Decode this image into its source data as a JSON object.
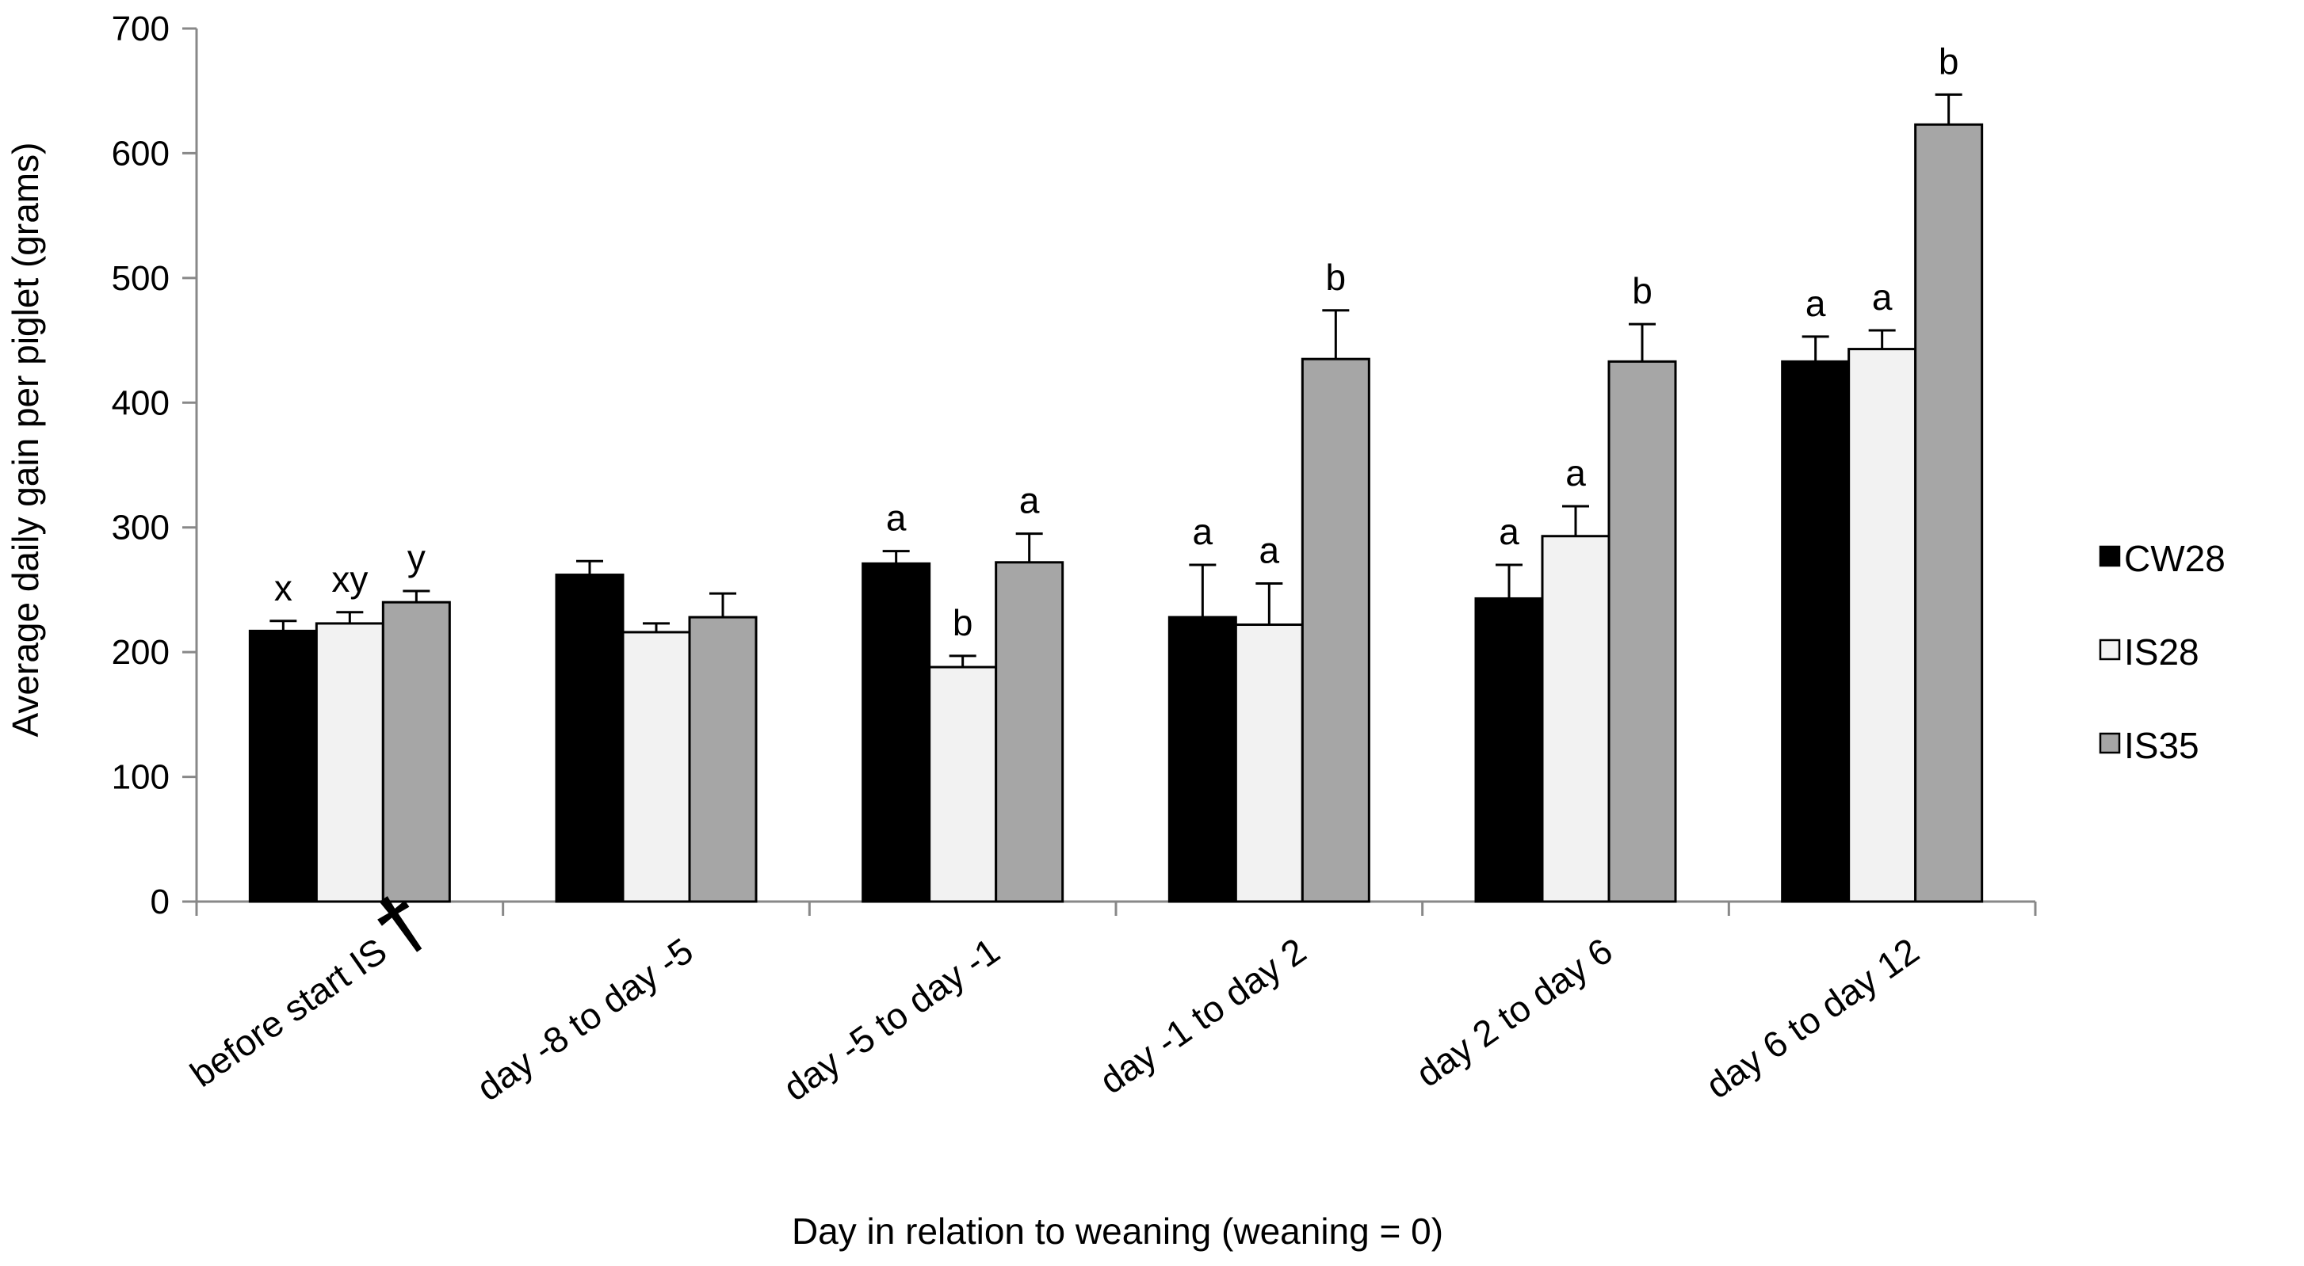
{
  "chart_data": {
    "type": "bar",
    "title": "",
    "xlabel": "Day in relation to weaning (weaning = 0)",
    "ylabel": "Average daily gain per piglet (grams)",
    "ylim": [
      0,
      700
    ],
    "yticks": [
      0,
      100,
      200,
      300,
      400,
      500,
      600,
      700
    ],
    "grid": false,
    "legend_position": "right",
    "categories": [
      "before start IS",
      "day -8 to day -5",
      "day -5 to day -1",
      "day -1 to day 2",
      "day 2 to day 6",
      "day 6 to day 12"
    ],
    "category_marks": [
      "†",
      "",
      "",
      "",
      "",
      ""
    ],
    "series": [
      {
        "name": "CW28",
        "color": "#000000",
        "values": [
          217,
          262,
          271,
          228,
          243,
          433
        ],
        "errors": [
          8,
          11,
          10,
          42,
          27,
          20
        ],
        "labels": [
          "x",
          "",
          "a",
          "a",
          "a",
          "a"
        ]
      },
      {
        "name": "IS28",
        "color": "#f2f2f2",
        "values": [
          223,
          216,
          188,
          222,
          293,
          443
        ],
        "errors": [
          9,
          7,
          9,
          33,
          24,
          15
        ],
        "labels": [
          "xy",
          "",
          "b",
          "a",
          "a",
          "a"
        ]
      },
      {
        "name": "IS35",
        "color": "#a6a6a6",
        "values": [
          240,
          228,
          272,
          435,
          433,
          623
        ],
        "errors": [
          9,
          19,
          23,
          39,
          30,
          24
        ],
        "labels": [
          "y",
          "",
          "a",
          "b",
          "b",
          "b"
        ]
      }
    ]
  }
}
